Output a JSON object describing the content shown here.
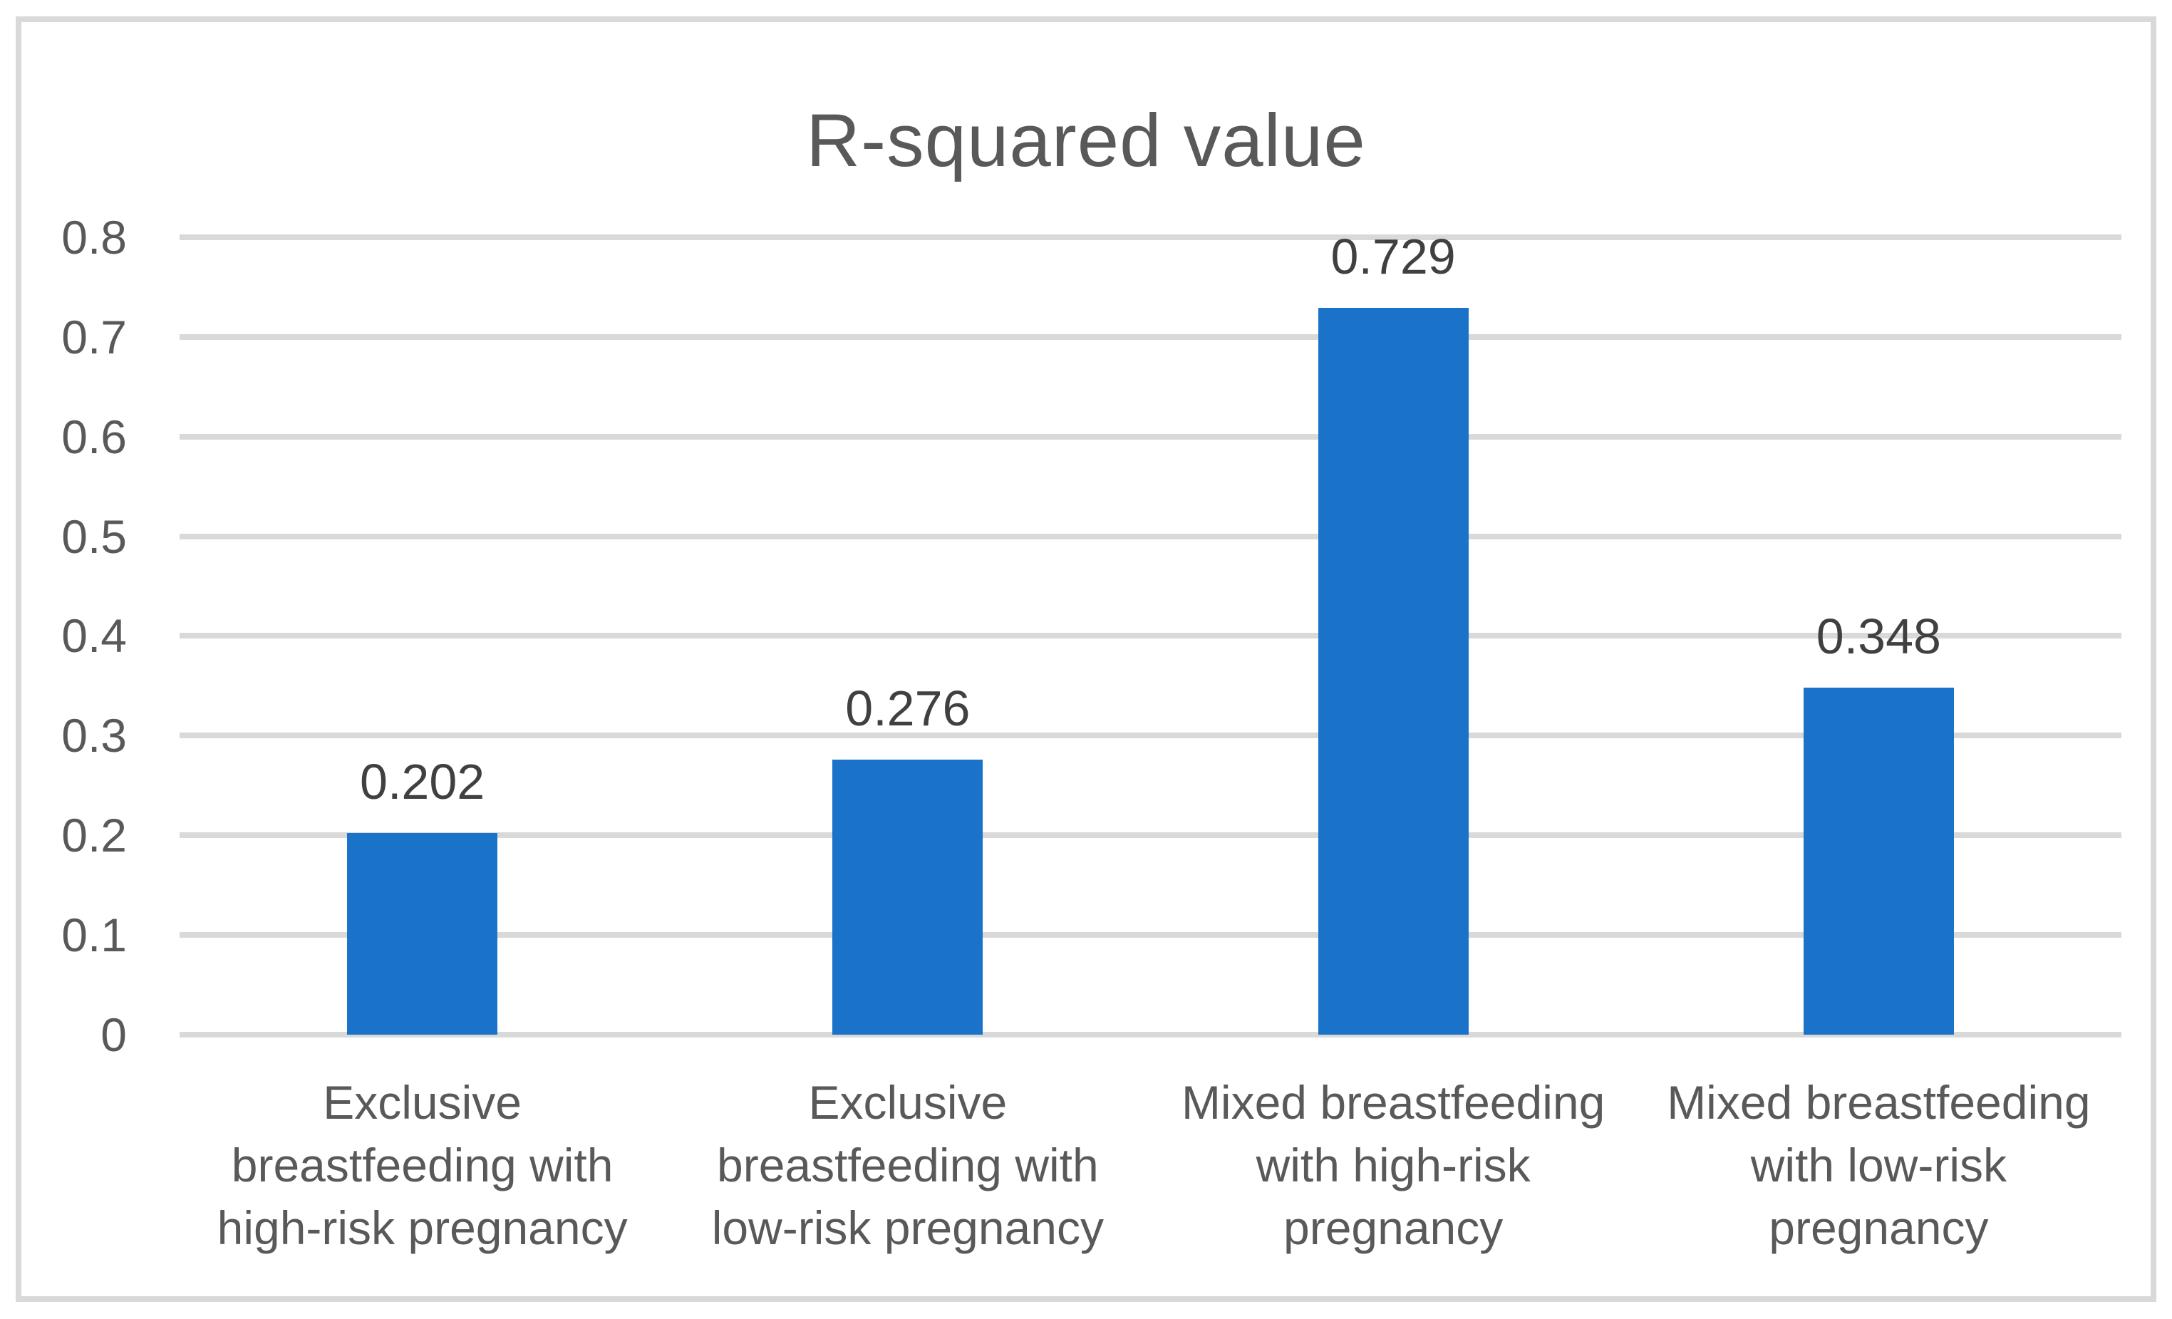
{
  "chart_data": {
    "type": "bar",
    "title": "R-squared value",
    "categories": [
      "Exclusive\nbreastfeeding with\nhigh-risk pregnancy",
      "Exclusive\nbreastfeeding with\nlow-risk pregnancy",
      "Mixed breastfeeding\nwith high-risk\npregnancy",
      "Mixed breastfeeding\nwith low-risk\npregnancy"
    ],
    "values": [
      0.202,
      0.276,
      0.729,
      0.348
    ],
    "data_labels": [
      "0.202",
      "0.276",
      "0.729",
      "0.348"
    ],
    "y_ticks": [
      "0",
      "0.1",
      "0.2",
      "0.3",
      "0.4",
      "0.5",
      "0.6",
      "0.7",
      "0.8"
    ],
    "y_tick_values": [
      0,
      0.1,
      0.2,
      0.3,
      0.4,
      0.5,
      0.6,
      0.7,
      0.8
    ],
    "ylim": [
      0,
      0.8
    ],
    "xlabel": "",
    "ylabel": "",
    "grid": true,
    "legend_position": "none",
    "colors": {
      "bar": "#1A73C8",
      "gridline": "#D9D9D9",
      "frame_border": "#D9D9D9",
      "title_text": "#595959",
      "axis_text": "#595959",
      "data_label_text": "#404040",
      "background": "#FFFFFF"
    }
  }
}
